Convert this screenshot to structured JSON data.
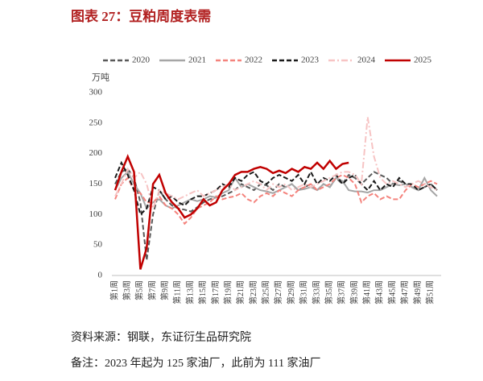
{
  "chart_data": {
    "type": "line",
    "title": "图表 27：豆粕周度表需",
    "y_label": "万吨",
    "source": "资料来源：钢联，东证衍生品研究院",
    "note": "备注：2023 年起为 125 家油厂，此前为 111 家油厂",
    "categories": [
      "第1周",
      null,
      "第3周",
      null,
      "第5周",
      null,
      "第7周",
      null,
      "第9周",
      null,
      "第11周",
      null,
      "第13周",
      null,
      "第15周",
      null,
      "第17周",
      null,
      "第19周",
      null,
      "第21周",
      null,
      "第23周",
      null,
      "第25周",
      null,
      "第27周",
      null,
      "第29周",
      null,
      "第31周",
      null,
      "第33周",
      null,
      "第35周",
      null,
      "第37周",
      null,
      "第39周",
      null,
      "第41周",
      null,
      "第43周",
      null,
      "第45周",
      null,
      "第47周",
      null,
      "第49周",
      null,
      "第51周",
      null
    ],
    "ylim": [
      0,
      300
    ],
    "yticks": [
      0,
      50,
      100,
      150,
      200,
      250,
      300
    ],
    "series": [
      {
        "name": "2020",
        "color": "#595959",
        "style": "dashed",
        "values": [
          150,
          170,
          175,
          160,
          120,
          25,
          100,
          140,
          125,
          115,
          110,
          108,
          105,
          112,
          120,
          125,
          128,
          130,
          135,
          140,
          150,
          145,
          140,
          150,
          148,
          140,
          150,
          145,
          150,
          140,
          145,
          150,
          140,
          150,
          145,
          160,
          150,
          165,
          160,
          150,
          160,
          170,
          165,
          160,
          150,
          155,
          150,
          145,
          140,
          145,
          150,
          140
        ]
      },
      {
        "name": "2021",
        "color": "#a6a6a6",
        "style": "solid",
        "values": [
          140,
          160,
          170,
          150,
          135,
          110,
          120,
          125,
          115,
          110,
          115,
          120,
          125,
          122,
          125,
          130,
          128,
          135,
          140,
          160,
          145,
          150,
          145,
          140,
          138,
          135,
          140,
          145,
          150,
          140,
          142,
          145,
          140,
          150,
          145,
          160,
          155,
          140,
          138,
          138,
          136,
          140,
          140,
          145,
          150,
          148,
          150,
          145,
          140,
          160,
          140,
          130
        ]
      },
      {
        "name": "2022",
        "color": "#f4837d",
        "style": "dashed",
        "values": [
          125,
          150,
          160,
          140,
          135,
          120,
          120,
          130,
          115,
          110,
          100,
          85,
          95,
          110,
          115,
          120,
          130,
          125,
          128,
          130,
          135,
          125,
          120,
          130,
          135,
          130,
          140,
          135,
          130,
          140,
          145,
          150,
          140,
          145,
          150,
          160,
          165,
          160,
          150,
          120,
          130,
          135,
          125,
          130,
          125,
          125,
          140,
          150,
          145,
          150,
          155,
          150
        ]
      },
      {
        "name": "2023",
        "color": "#1a1a1a",
        "style": "dashed",
        "values": [
          160,
          185,
          165,
          140,
          100,
          110,
          145,
          140,
          125,
          130,
          120,
          115,
          125,
          130,
          130,
          135,
          140,
          150,
          145,
          160,
          155,
          165,
          170,
          155,
          150,
          160,
          165,
          160,
          155,
          165,
          150,
          170,
          150,
          160,
          155,
          165,
          150,
          160,
          165,
          150,
          140,
          155,
          140,
          150,
          145,
          160,
          150,
          150,
          140,
          145,
          150,
          140
        ]
      },
      {
        "name": "2024",
        "color": "#f7c4c4",
        "style": "dashdot",
        "values": [
          130,
          150,
          175,
          160,
          170,
          150,
          110,
          140,
          135,
          130,
          125,
          130,
          135,
          140,
          130,
          135,
          140,
          145,
          150,
          140,
          145,
          150,
          155,
          150,
          140,
          150,
          145,
          150,
          140,
          145,
          150,
          145,
          150,
          155,
          160,
          165,
          170,
          170,
          165,
          150,
          260,
          195,
          160,
          150,
          155,
          150,
          145,
          150,
          155,
          150,
          145,
          140
        ]
      },
      {
        "name": "2025",
        "color": "#c00000",
        "style": "solid",
        "values": [
          140,
          170,
          195,
          170,
          10,
          45,
          150,
          165,
          135,
          120,
          110,
          95,
          100,
          110,
          125,
          115,
          120,
          140,
          150,
          165,
          170,
          170,
          175,
          178,
          175,
          168,
          172,
          168,
          175,
          170,
          178,
          175,
          185,
          175,
          188,
          175,
          183,
          185,
          null,
          null,
          null,
          null,
          null,
          null,
          null,
          null,
          null,
          null,
          null,
          null,
          null,
          null
        ]
      }
    ]
  }
}
